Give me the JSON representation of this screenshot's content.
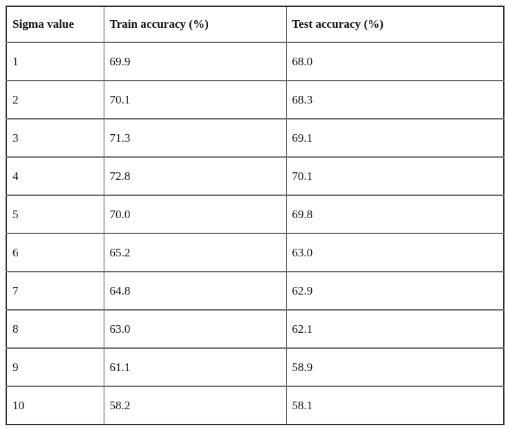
{
  "table": {
    "name": "sigma-accuracy-results",
    "columns": [
      "Sigma value",
      "Train accuracy (%)",
      "Test accuracy (%)"
    ],
    "rows": [
      [
        "1",
        "69.9",
        "68.0"
      ],
      [
        "2",
        "70.1",
        "68.3"
      ],
      [
        "3",
        "71.3",
        "69.1"
      ],
      [
        "4",
        "72.8",
        "70.1"
      ],
      [
        "5",
        "70.0",
        "69.8"
      ],
      [
        "6",
        "65.2",
        "63.0"
      ],
      [
        "7",
        "64.8",
        "62.9"
      ],
      [
        "8",
        "63.0",
        "62.1"
      ],
      [
        "9",
        "61.1",
        "58.9"
      ],
      [
        "10",
        "58.2",
        "58.1"
      ]
    ]
  },
  "colors": {
    "outer_border": "#2f2f2f",
    "inner_horizontal_rule": "#6e6e6e",
    "inner_vertical_rule": "#3f3f3f",
    "text": "#111111",
    "background": "#ffffff"
  }
}
